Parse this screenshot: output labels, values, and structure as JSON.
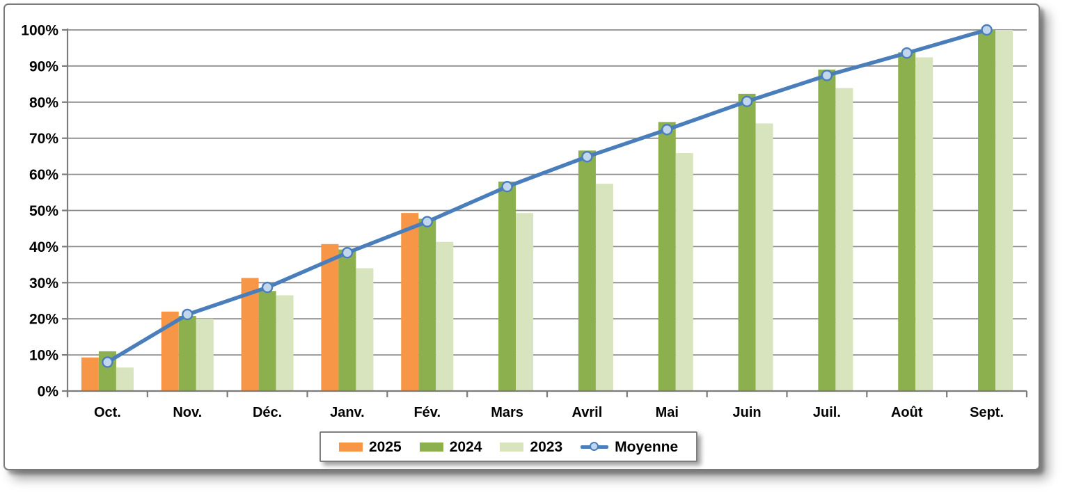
{
  "panel": {
    "background": "#ffffff",
    "border_color": "#7a7a7a"
  },
  "chart_data": {
    "type": "bar",
    "subtype": "grouped bars with overlaid line (cumulative % by month)",
    "categories": [
      "Oct.",
      "Nov.",
      "Déc.",
      "Janv.",
      "Fév.",
      "Mars",
      "Avril",
      "Mai",
      "Juin",
      "Juil.",
      "Août",
      "Sept."
    ],
    "series": [
      {
        "name": "2025",
        "kind": "bar",
        "color": "#F79646",
        "values": [
          9.3,
          22.0,
          31.3,
          40.7,
          49.3,
          null,
          null,
          null,
          null,
          null,
          null,
          null
        ]
      },
      {
        "name": "2024",
        "kind": "bar",
        "color": "#8DB04E",
        "values": [
          11.0,
          20.8,
          27.7,
          39.2,
          47.7,
          58.0,
          66.6,
          74.5,
          82.3,
          89.0,
          93.8,
          100.0
        ]
      },
      {
        "name": "2023",
        "kind": "bar",
        "color": "#D7E4BD",
        "values": [
          6.5,
          20.0,
          26.5,
          34.0,
          41.3,
          49.3,
          57.4,
          65.9,
          74.1,
          83.9,
          92.4,
          100.0
        ]
      },
      {
        "name": "Moyenne",
        "kind": "line",
        "color": "#4A7EBB",
        "marker_fill": "#C2D6EE",
        "values": [
          8.0,
          21.2,
          28.7,
          38.3,
          46.9,
          56.6,
          64.9,
          72.4,
          80.2,
          87.4,
          93.6,
          100.0
        ]
      }
    ],
    "title": "",
    "xlabel": "",
    "ylabel": "",
    "ylim": [
      0,
      100
    ],
    "ytick_labels": [
      "0%",
      "10%",
      "20%",
      "30%",
      "40%",
      "50%",
      "60%",
      "70%",
      "80%",
      "90%",
      "100%"
    ],
    "grid": true,
    "legend_position": "bottom-center",
    "colors": {
      "grid": "#8b8b8b",
      "axis": "#7b7b7b",
      "text": "#000000"
    }
  }
}
